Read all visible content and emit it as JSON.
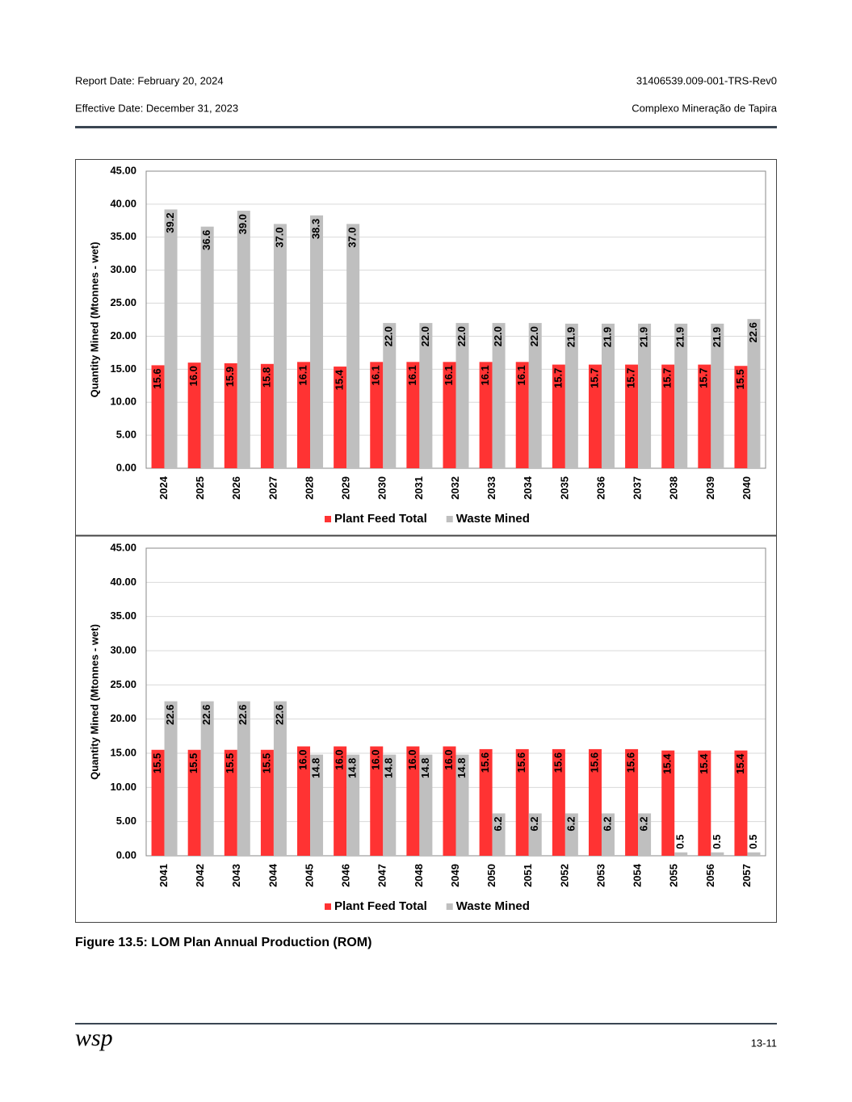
{
  "header": {
    "report_date": "Report Date: February 20, 2024",
    "doc_id": "31406539.009-001-TRS-Rev0",
    "effective_date": "Effective Date: December 31, 2023",
    "project": "Complexo Mineração de Tapira"
  },
  "chart_data": [
    {
      "type": "bar",
      "y_label": "Quantity Mined (Mtonnes - wet)",
      "categories": [
        "2024",
        "2025",
        "2026",
        "2027",
        "2028",
        "2029",
        "2030",
        "2031",
        "2032",
        "2033",
        "2034",
        "2035",
        "2036",
        "2037",
        "2038",
        "2039",
        "2040"
      ],
      "series": [
        {
          "name": "Plant Feed Total",
          "color": "#ff3333",
          "values": [
            15.6,
            16.0,
            15.9,
            15.8,
            16.1,
            15.4,
            16.1,
            16.1,
            16.1,
            16.1,
            16.1,
            15.7,
            15.7,
            15.7,
            15.7,
            15.7,
            15.5
          ],
          "value_labels": [
            "15.6",
            "16.0",
            "15.9",
            "15.8",
            "16.1",
            "15.4",
            "16.1",
            "16.1",
            "16.1",
            "16.1",
            "16.1",
            "15.7",
            "15.7",
            "15.7",
            "15.7",
            "15.7",
            "15.5"
          ]
        },
        {
          "name": "Waste Mined",
          "color": "#bfbfbf",
          "values": [
            39.2,
            36.6,
            39.0,
            37.0,
            38.3,
            37.0,
            22.0,
            22.0,
            22.0,
            22.0,
            22.0,
            21.9,
            21.9,
            21.9,
            21.9,
            21.9,
            22.6
          ],
          "value_labels": [
            "39.2",
            "36.6",
            "39.0",
            "37.0",
            "38.3",
            "37.0",
            "22.0",
            "22.0",
            "22.0",
            "22.0",
            "22.0",
            "21.9",
            "21.9",
            "21.9",
            "21.9",
            "21.9",
            "22.6"
          ]
        }
      ],
      "ylim": [
        0,
        45
      ],
      "yticks": [
        {
          "value": 0,
          "label": "0.00"
        },
        {
          "value": 5,
          "label": "5.00"
        },
        {
          "value": 10,
          "label": "10.00"
        },
        {
          "value": 15,
          "label": "15.00"
        },
        {
          "value": 20,
          "label": "20.00"
        },
        {
          "value": 25,
          "label": "25.00"
        },
        {
          "value": 30,
          "label": "30.00"
        },
        {
          "value": 35,
          "label": "35.00"
        },
        {
          "value": 40,
          "label": "40.00"
        },
        {
          "value": 45,
          "label": "45.00"
        }
      ],
      "grid": true,
      "legend": "bottom"
    },
    {
      "type": "bar",
      "y_label": "Quantity Mined (Mtonnes - wet)",
      "categories": [
        "2041",
        "2042",
        "2043",
        "2044",
        "2045",
        "2046",
        "2047",
        "2048",
        "2049",
        "2050",
        "2051",
        "2052",
        "2053",
        "2054",
        "2055",
        "2056",
        "2057"
      ],
      "series": [
        {
          "name": "Plant Feed Total",
          "color": "#ff3333",
          "values": [
            15.5,
            15.5,
            15.5,
            15.5,
            16.0,
            16.0,
            16.0,
            16.0,
            16.0,
            15.6,
            15.6,
            15.6,
            15.6,
            15.6,
            15.4,
            15.4,
            15.4
          ],
          "value_labels": [
            "15.5",
            "15.5",
            "15.5",
            "15.5",
            "16.0",
            "16.0",
            "16.0",
            "16.0",
            "16.0",
            "15.6",
            "15.6",
            "15.6",
            "15.6",
            "15.6",
            "15.4",
            "15.4",
            "15.4"
          ]
        },
        {
          "name": "Waste Mined",
          "color": "#bfbfbf",
          "values": [
            22.6,
            22.6,
            22.6,
            22.6,
            14.8,
            14.8,
            14.8,
            14.8,
            14.8,
            6.2,
            6.2,
            6.2,
            6.2,
            6.2,
            0.5,
            0.5,
            0.5
          ],
          "value_labels": [
            "22.6",
            "22.6",
            "22.6",
            "22.6",
            "14.8",
            "14.8",
            "14.8",
            "14.8",
            "14.8",
            "6.2",
            "6.2",
            "6.2",
            "6.2",
            "6.2",
            "0.5",
            "0.5",
            "0.5"
          ]
        }
      ],
      "ylim": [
        0,
        45
      ],
      "yticks": [
        {
          "value": 0,
          "label": "0.00"
        },
        {
          "value": 5,
          "label": "5.00"
        },
        {
          "value": 10,
          "label": "10.00"
        },
        {
          "value": 15,
          "label": "15.00"
        },
        {
          "value": 20,
          "label": "20.00"
        },
        {
          "value": 25,
          "label": "25.00"
        },
        {
          "value": 30,
          "label": "30.00"
        },
        {
          "value": 35,
          "label": "35.00"
        },
        {
          "value": 40,
          "label": "40.00"
        },
        {
          "value": 45,
          "label": "45.00"
        }
      ],
      "grid": true,
      "legend": "bottom"
    }
  ],
  "caption": "Figure 13.5: LOM Plan Annual Production (ROM)",
  "footer": {
    "logo": "wsp",
    "page": "13-11"
  }
}
